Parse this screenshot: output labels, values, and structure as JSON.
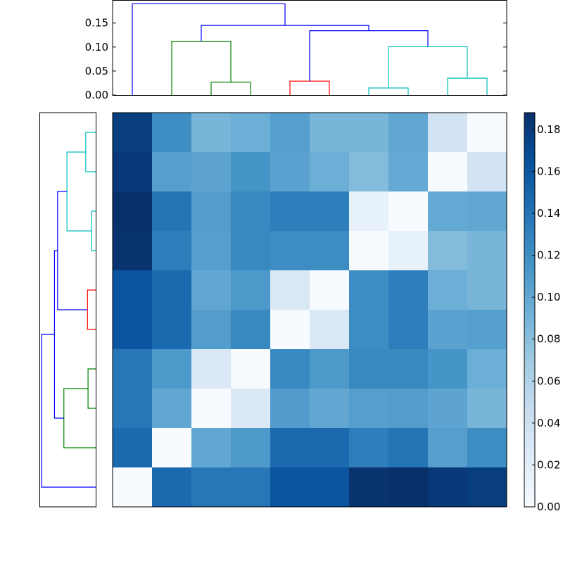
{
  "chart_data": {
    "type": "heatmap",
    "title": "",
    "description_free": true,
    "colormap": "Blues",
    "colormap_stops": [
      "#f7fbff",
      "#deebf7",
      "#c6dbef",
      "#9ecae1",
      "#6baed6",
      "#4292c6",
      "#2171b5",
      "#08519c",
      "#08306b"
    ],
    "vmin": 0.0,
    "vmax": 0.188,
    "colorbar_ticks": [
      "0.00",
      "0.02",
      "0.04",
      "0.06",
      "0.08",
      "0.10",
      "0.12",
      "0.14",
      "0.16",
      "0.18"
    ],
    "colorbar_tick_values": [
      0,
      0.02,
      0.04,
      0.06,
      0.08,
      0.1,
      0.12,
      0.14,
      0.16,
      0.18
    ],
    "matrix_rows_top_to_bottom": [
      [
        0.179,
        0.12,
        0.088,
        0.094,
        0.107,
        0.088,
        0.088,
        0.1,
        0.035,
        0.0
      ],
      [
        0.182,
        0.107,
        0.102,
        0.115,
        0.104,
        0.094,
        0.083,
        0.098,
        0.0,
        0.035
      ],
      [
        0.188,
        0.139,
        0.108,
        0.124,
        0.132,
        0.132,
        0.015,
        0.0,
        0.098,
        0.1
      ],
      [
        0.186,
        0.132,
        0.107,
        0.124,
        0.121,
        0.121,
        0.0,
        0.015,
        0.083,
        0.088
      ],
      [
        0.162,
        0.147,
        0.1,
        0.111,
        0.028,
        0.0,
        0.121,
        0.132,
        0.094,
        0.088
      ],
      [
        0.162,
        0.147,
        0.108,
        0.124,
        0.0,
        0.028,
        0.121,
        0.132,
        0.104,
        0.107
      ],
      [
        0.137,
        0.111,
        0.026,
        0.0,
        0.124,
        0.111,
        0.124,
        0.124,
        0.115,
        0.094
      ],
      [
        0.137,
        0.1,
        0.0,
        0.026,
        0.109,
        0.1,
        0.107,
        0.108,
        0.102,
        0.088
      ],
      [
        0.147,
        0.0,
        0.1,
        0.111,
        0.147,
        0.147,
        0.132,
        0.139,
        0.107,
        0.12
      ],
      [
        0.0,
        0.147,
        0.137,
        0.137,
        0.162,
        0.162,
        0.186,
        0.188,
        0.182,
        0.179
      ]
    ],
    "dendrogram": {
      "ylim": [
        0,
        0.198
      ],
      "yticks": [
        "0.00",
        "0.05",
        "0.10",
        "0.15"
      ],
      "ytick_values": [
        0,
        0.05,
        0.1,
        0.15
      ],
      "links": [
        {
          "x": [
            2,
            3
          ],
          "child_h": [
            0,
            0
          ],
          "h": 0.027,
          "color": "#008000"
        },
        {
          "x": [
            4,
            5
          ],
          "child_h": [
            0,
            0
          ],
          "h": 0.029,
          "color": "#ff0000"
        },
        {
          "x": [
            6,
            7
          ],
          "child_h": [
            0,
            0
          ],
          "h": 0.0147,
          "color": "#00bfbf"
        },
        {
          "x": [
            8,
            9
          ],
          "child_h": [
            0,
            0
          ],
          "h": 0.035,
          "color": "#00bfbf"
        },
        {
          "x": [
            1,
            2.5
          ],
          "child_h": [
            0,
            0.027
          ],
          "h": 0.112,
          "color": "#008000"
        },
        {
          "x": [
            6.5,
            8.5
          ],
          "child_h": [
            0.0147,
            0.035
          ],
          "h": 0.101,
          "color": "#00bfbf"
        },
        {
          "x": [
            4.5,
            7.5
          ],
          "child_h": [
            0.029,
            0.101
          ],
          "h": 0.134,
          "color": "#0000ff"
        },
        {
          "x": [
            1.75,
            6
          ],
          "child_h": [
            0.112,
            0.134
          ],
          "h": 0.145,
          "color": "#0000ff"
        },
        {
          "x": [
            0,
            3.875
          ],
          "child_h": [
            0,
            0.145
          ],
          "h": 0.19,
          "color": "#0000ff"
        }
      ]
    },
    "grid": false,
    "xlabel": "",
    "ylabel": ""
  }
}
